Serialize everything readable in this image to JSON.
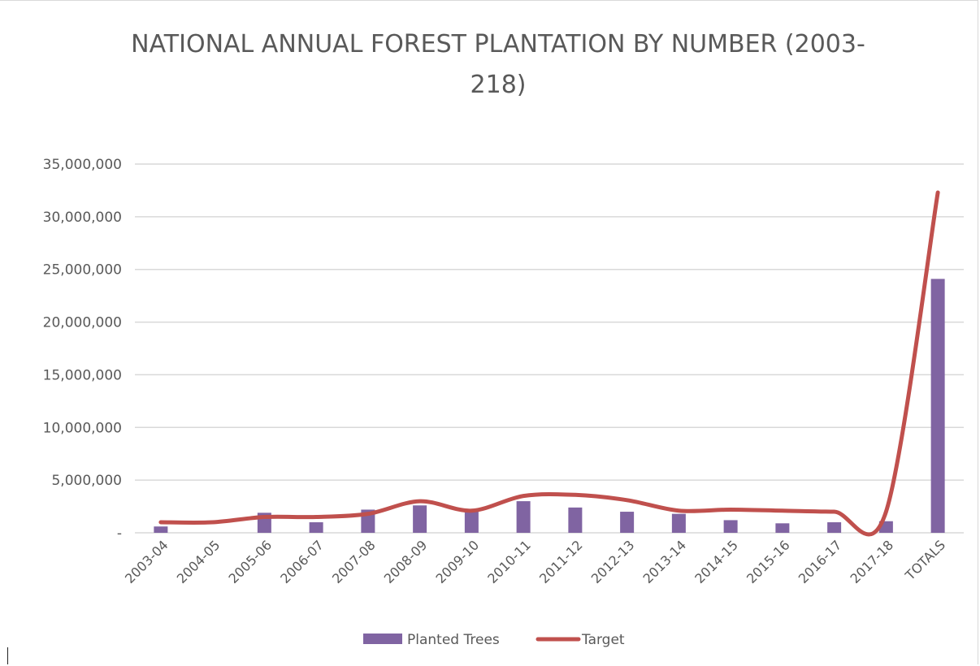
{
  "chart_data": {
    "type": "bar",
    "title_line1": "NATIONAL ANNUAL FOREST PLANTATION BY NUMBER (2003-",
    "title_line2": "218)",
    "categories": [
      "2003-04",
      "2004-05",
      "2005-06",
      "2006-07",
      "2007-08",
      "2008-09",
      "2009-10",
      "2010-11",
      "2011-12",
      "2012-13",
      "2013-14",
      "2014-15",
      "2015-16",
      "2016-17",
      "2017-18",
      "TOTALS"
    ],
    "series": [
      {
        "name": "Planted Trees",
        "kind": "bar",
        "color": "#8064a2",
        "values": [
          600000,
          0,
          1900000,
          1000000,
          2200000,
          2600000,
          2100000,
          3000000,
          2400000,
          2000000,
          1800000,
          1200000,
          900000,
          1000000,
          1100000,
          24100000
        ]
      },
      {
        "name": "Target",
        "kind": "line",
        "color": "#c0504d",
        "values": [
          1000000,
          1000000,
          1500000,
          1500000,
          1800000,
          3000000,
          2100000,
          3500000,
          3600000,
          3100000,
          2100000,
          2200000,
          2100000,
          2000000,
          2000000,
          32300000
        ]
      }
    ],
    "y_ticks": [
      {
        "value": 0,
        "label": "-"
      },
      {
        "value": 5000000,
        "label": "5,000,000"
      },
      {
        "value": 10000000,
        "label": "10,000,000"
      },
      {
        "value": 15000000,
        "label": "15,000,000"
      },
      {
        "value": 20000000,
        "label": "20,000,000"
      },
      {
        "value": 25000000,
        "label": "25,000,000"
      },
      {
        "value": 30000000,
        "label": "30,000,000"
      },
      {
        "value": 35000000,
        "label": "35,000,000"
      }
    ],
    "ylim": [
      0,
      35000000
    ],
    "grid": true,
    "legend_position": "bottom",
    "gridline_color": "#d9d9d9",
    "axis_text_color": "#595959"
  }
}
